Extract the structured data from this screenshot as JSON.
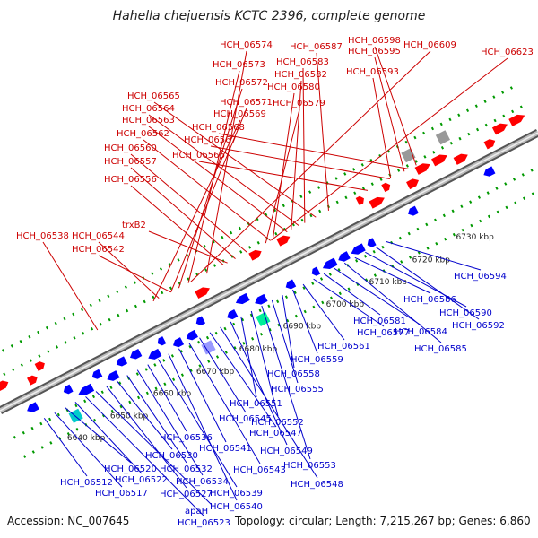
{
  "title": "Hahella chejuensis KCTC 2396, complete genome",
  "footer": {
    "accession": "Accession: NC_007645",
    "meta": "Topology: circular; Length: 7,215,267 bp; Genes: 6,860"
  },
  "colors": {
    "forward_label": "#cc0000",
    "reverse_label": "#0000cc",
    "forward_gene": "#ff0000",
    "reverse_gene": "#0000ff",
    "backbone": "#888888",
    "tick": "#009900"
  },
  "scale_ticks": [
    "6640 kbp",
    "6650 kbp",
    "6660 kbp",
    "6670 kbp",
    "6680 kbp",
    "6690 kbp",
    "6700 kbp",
    "6710 kbp",
    "6720 kbp",
    "6730 kbp"
  ],
  "forward_labels": [
    "HCH_06538",
    "HCH_06544",
    "HCH_06542",
    "trxB2",
    "HCH_06556",
    "HCH_06557",
    "HCH_06560",
    "HCH_06562",
    "HCH_06563",
    "HCH_06564",
    "HCH_06565",
    "HCH_06566",
    "HCH_06567",
    "HCH_06568",
    "HCH_06569",
    "HCH_06571",
    "HCH_06572",
    "HCH_06573",
    "HCH_06574",
    "HCH_06579",
    "HCH_06580",
    "HCH_06582",
    "HCH_06583",
    "HCH_06587",
    "HCH_06593",
    "HCH_06595",
    "HCH_06598",
    "HCH_06609",
    "HCH_06623"
  ],
  "reverse_labels": [
    "HCH_06512",
    "HCH_06517",
    "HCH_06520",
    "HCH_06522",
    "HCH_06523",
    "apaH",
    "HCH_06527",
    "HCH_06530",
    "HCH_06532",
    "HCH_06534",
    "HCH_06536",
    "HCH_06539",
    "HCH_06540",
    "HCH_06541",
    "HCH_06543",
    "HCH_06545",
    "HCH_06547",
    "HCH_06548",
    "HCH_06549",
    "HCH_06551",
    "HCH_06552",
    "HCH_06553",
    "HCH_06555",
    "HCH_06558",
    "HCH_06559",
    "HCH_06561",
    "HCH_06577",
    "HCH_06581",
    "HCH_06584",
    "HCH_06585",
    "HCH_06586",
    "HCH_06590",
    "HCH_06592",
    "HCH_06594"
  ]
}
